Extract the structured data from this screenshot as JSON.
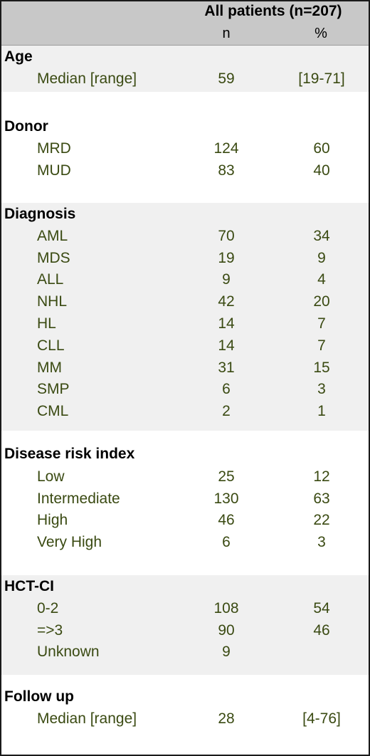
{
  "header": {
    "title": "All patients (n=207)",
    "col_n": "n",
    "col_pct": "%"
  },
  "sections": [
    {
      "title": "Age",
      "rows": [
        {
          "label": "Median [range]",
          "n": "59",
          "pct": "[19-71]"
        }
      ]
    },
    {
      "title": "Donor",
      "rows": [
        {
          "label": "MRD",
          "n": "124",
          "pct": "60"
        },
        {
          "label": "MUD",
          "n": "83",
          "pct": "40"
        }
      ]
    },
    {
      "title": "Diagnosis",
      "rows": [
        {
          "label": "AML",
          "n": "70",
          "pct": "34"
        },
        {
          "label": "MDS",
          "n": "19",
          "pct": "9"
        },
        {
          "label": "ALL",
          "n": "9",
          "pct": "4"
        },
        {
          "label": "NHL",
          "n": "42",
          "pct": "20"
        },
        {
          "label": "HL",
          "n": "14",
          "pct": "7"
        },
        {
          "label": "CLL",
          "n": "14",
          "pct": "7"
        },
        {
          "label": "MM",
          "n": "31",
          "pct": "15"
        },
        {
          "label": "SMP",
          "n": "6",
          "pct": "3"
        },
        {
          "label": "CML",
          "n": "2",
          "pct": "1"
        }
      ]
    },
    {
      "title": "Disease risk index",
      "rows": [
        {
          "label": "Low",
          "n": "25",
          "pct": "12"
        },
        {
          "label": "Intermediate",
          "n": "130",
          "pct": "63"
        },
        {
          "label": "High",
          "n": "46",
          "pct": "22"
        },
        {
          "label": "Very High",
          "n": "6",
          "pct": "3"
        }
      ]
    },
    {
      "title": "HCT-CI",
      "rows": [
        {
          "label": "0-2",
          "n": "108",
          "pct": "54"
        },
        {
          "label": "=>3",
          "n": "90",
          "pct": "46"
        },
        {
          "label": "Unknown",
          "n": "9",
          "pct": ""
        }
      ]
    },
    {
      "title": "Follow up",
      "rows": [
        {
          "label": "Median [range]",
          "n": "28",
          "pct": "[4-76]"
        }
      ]
    }
  ]
}
